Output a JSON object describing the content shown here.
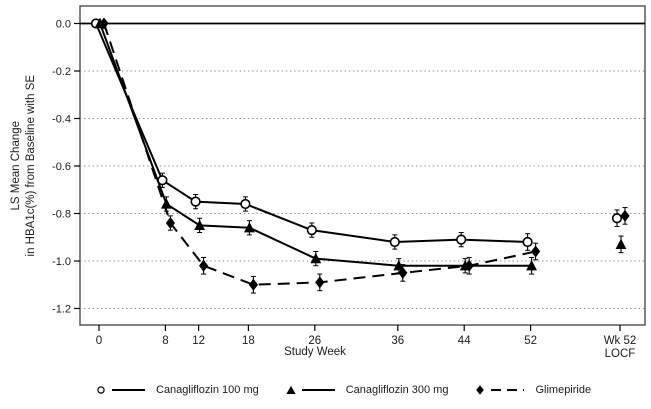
{
  "chart_data": {
    "type": "line",
    "xlabel": "Study Week",
    "ylabel_lines": [
      "LS Mean Change",
      "in HBA1c(%) from Baseline with SE"
    ],
    "x_weeks": [
      0,
      8,
      12,
      18,
      26,
      36,
      44,
      52
    ],
    "x_tick_labels": [
      "0",
      "8",
      "12",
      "18",
      "26",
      "36",
      "44",
      "52"
    ],
    "locf_tick_label": [
      "Wk 52",
      "LOCF"
    ],
    "y_ticks": [
      0.0,
      -0.2,
      -0.4,
      -0.6,
      -0.8,
      -1.0,
      -1.2
    ],
    "y_tick_labels": [
      "0.0",
      "-0.2",
      "-0.4",
      "-0.6",
      "-0.8",
      "-1.0",
      "-1.2"
    ],
    "ylim": [
      -1.2,
      0.0
    ],
    "grid": "dotted-horizontal",
    "legend_position": "bottom",
    "series": [
      {
        "name": "Canagliflozin 100 mg",
        "marker": "open-circle",
        "line": "solid",
        "values": [
          0.0,
          -0.66,
          -0.75,
          -0.76,
          -0.87,
          -0.92,
          -0.91,
          -0.92
        ],
        "se": [
          0,
          0.03,
          0.03,
          0.03,
          0.03,
          0.03,
          0.03,
          0.035
        ],
        "locf": {
          "value": -0.82,
          "se": 0.035
        }
      },
      {
        "name": "Canagliflozin 300 mg",
        "marker": "filled-triangle",
        "line": "solid",
        "values": [
          0.0,
          -0.76,
          -0.85,
          -0.86,
          -0.99,
          -1.02,
          -1.02,
          -1.02
        ],
        "se": [
          0,
          0.03,
          0.03,
          0.03,
          0.03,
          0.03,
          0.03,
          0.035
        ],
        "locf": {
          "value": -0.93,
          "se": 0.035
        }
      },
      {
        "name": "Glimepiride",
        "marker": "filled-diamond",
        "line": "dashed",
        "values": [
          0.0,
          -0.84,
          -1.02,
          -1.1,
          -1.09,
          -1.05,
          -1.02,
          -0.96
        ],
        "se": [
          0,
          0.03,
          0.035,
          0.035,
          0.035,
          0.035,
          0.035,
          0.035
        ],
        "locf": {
          "value": -0.81,
          "se": 0.035
        }
      }
    ],
    "colors": {
      "data": "#000000",
      "grid": "#8a8a8a",
      "frame": "#4d4d4d"
    }
  }
}
